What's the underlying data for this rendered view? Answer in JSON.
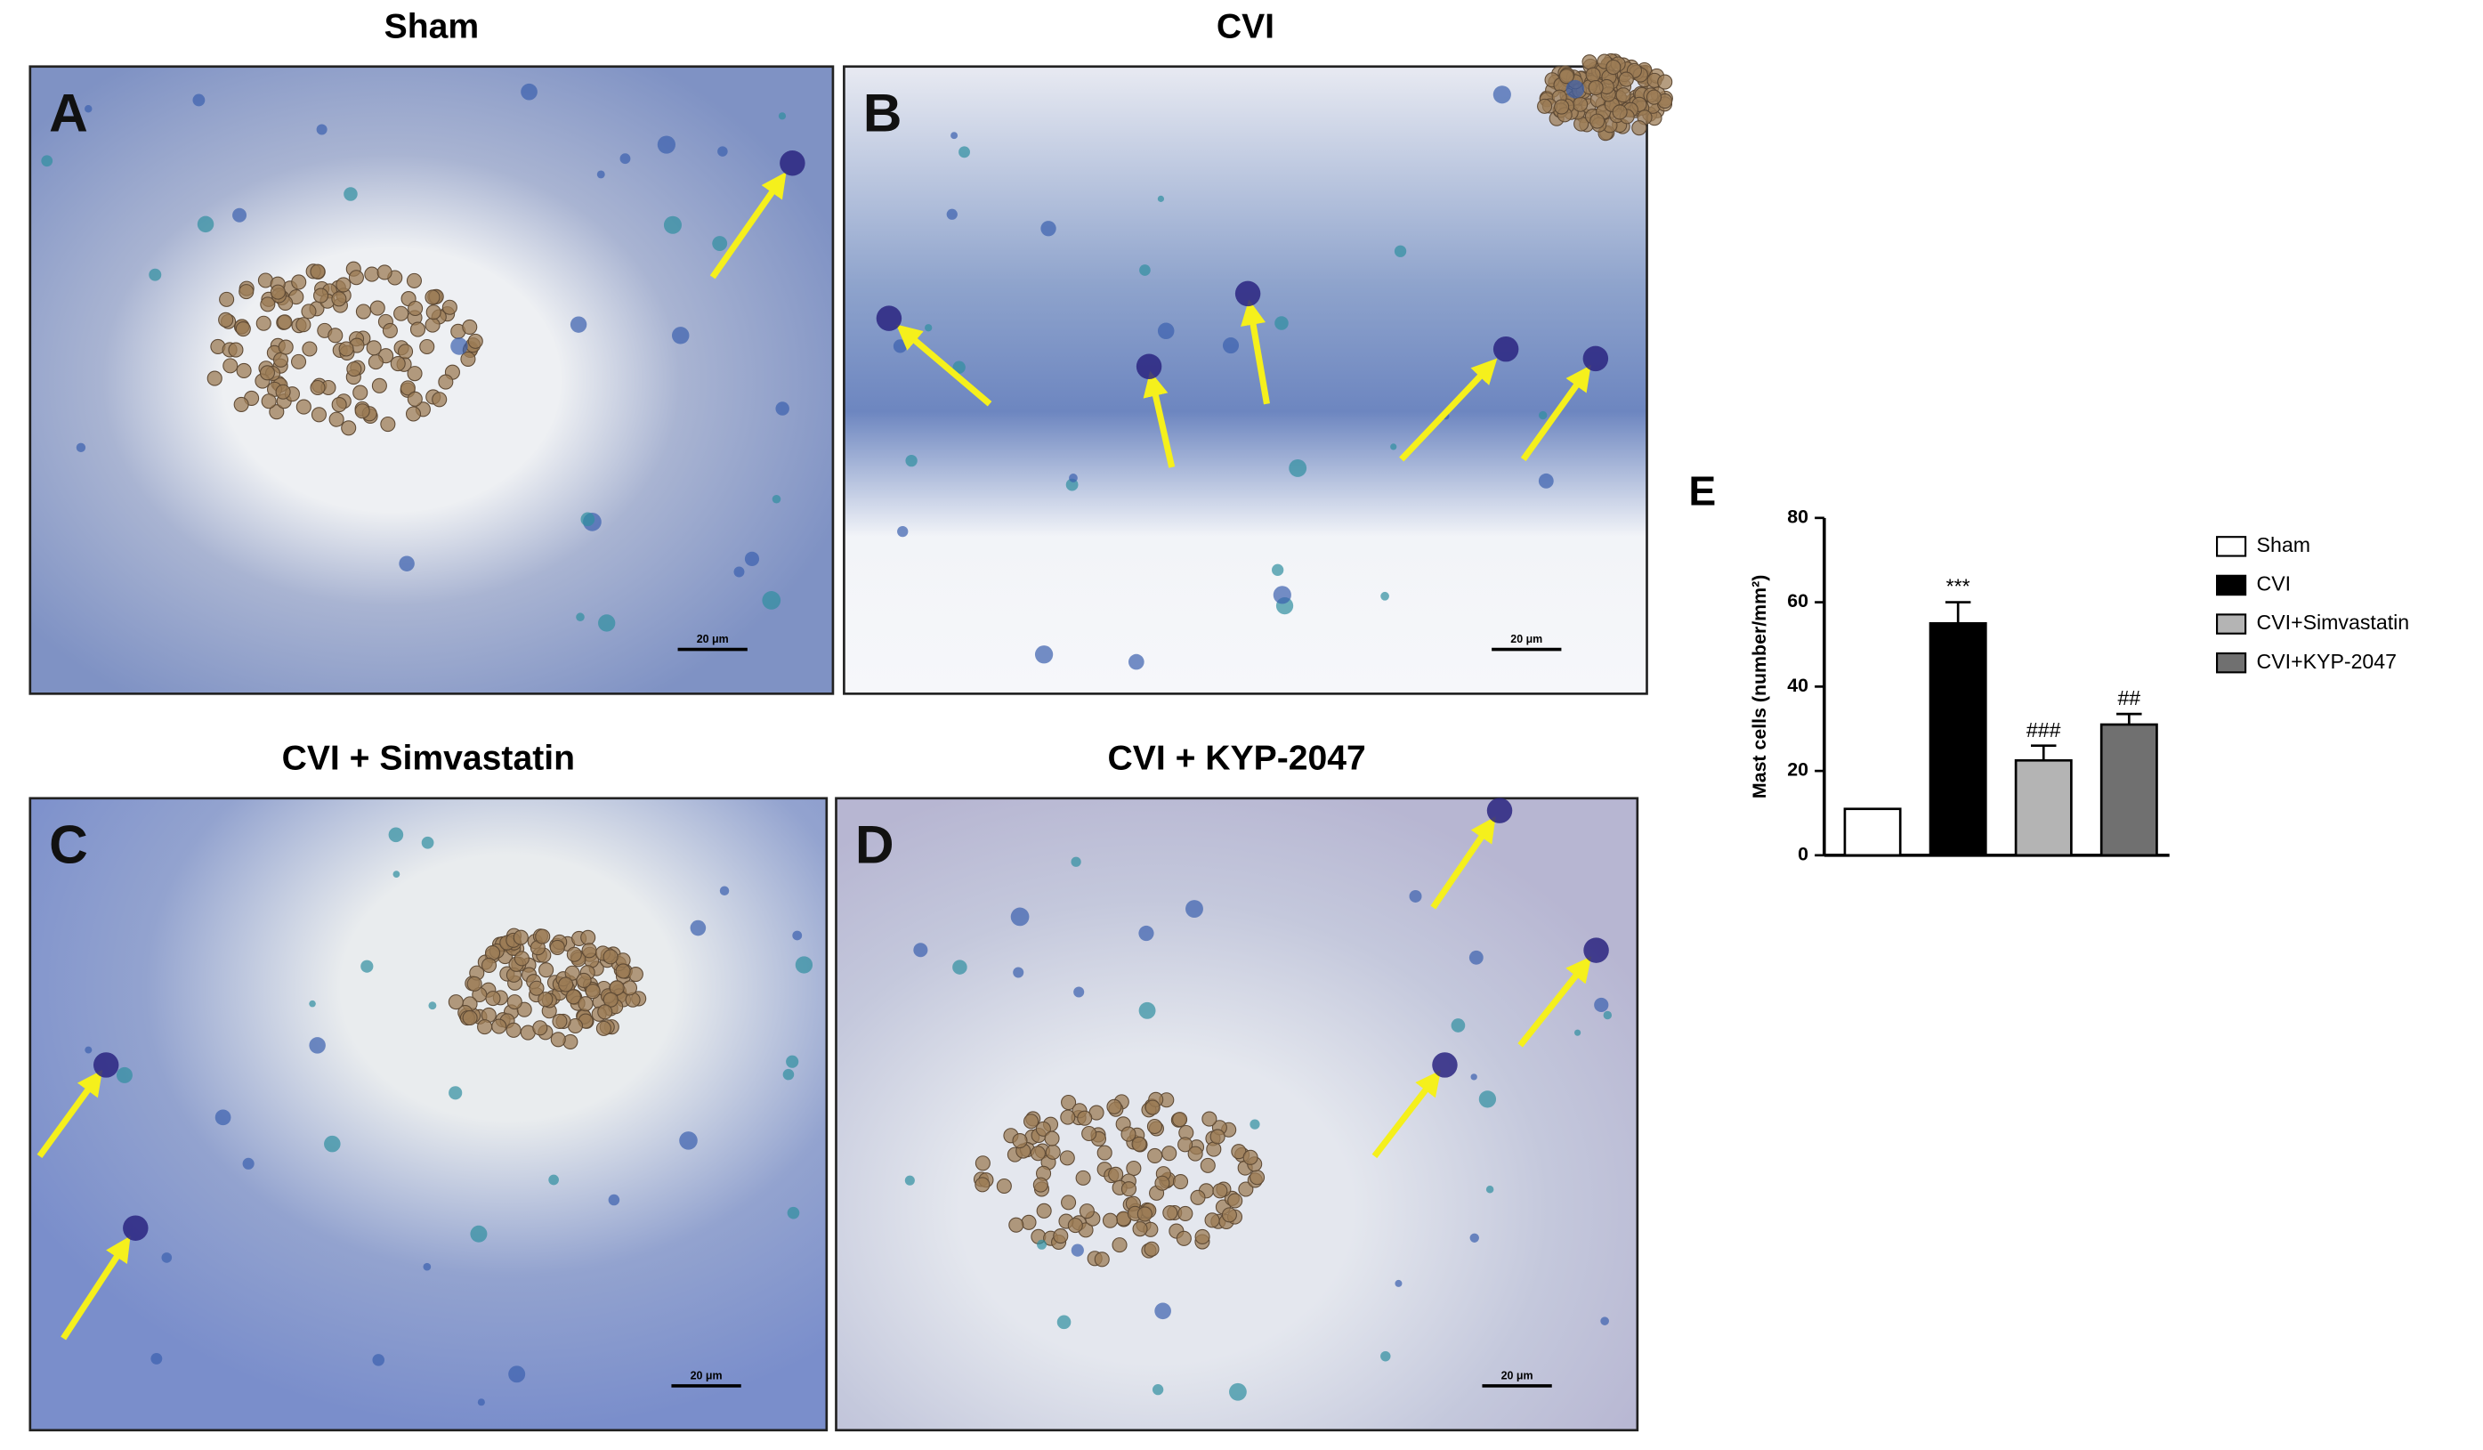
{
  "panels": [
    {
      "title": "Sham",
      "letter": "A",
      "scale_bar": "20 μm"
    },
    {
      "title": "CVI",
      "letter": "B",
      "scale_bar": "20 μm"
    },
    {
      "title": "CVI + Simvastatin",
      "letter": "C",
      "scale_bar": "20 μm"
    },
    {
      "title": "CVI + KYP-2047",
      "letter": "D",
      "scale_bar": "20 μm"
    }
  ],
  "chart_data": {
    "type": "bar",
    "letter": "E",
    "y_label": "Mast cells (number/mm²)",
    "categories": [
      null
    ],
    "series": [
      {
        "name": "Sham",
        "color": "#ffffff",
        "values": [
          11
        ]
      },
      {
        "name": "CVI",
        "color": "#000000",
        "values": [
          55
        ],
        "errors": [
          5
        ],
        "annotation": "***"
      },
      {
        "name": "CVI+Simvastatin",
        "color": "#b4b4b4",
        "values": [
          22.5
        ],
        "errors": [
          3.5
        ],
        "annotation": "###"
      },
      {
        "name": "CVI+KYP-2047",
        "color": "#707070",
        "values": [
          31
        ],
        "errors": [
          2.5
        ],
        "annotation": "##"
      }
    ],
    "ylim": [
      0,
      80
    ],
    "yticks": [
      0,
      20,
      40,
      60,
      80
    ]
  }
}
